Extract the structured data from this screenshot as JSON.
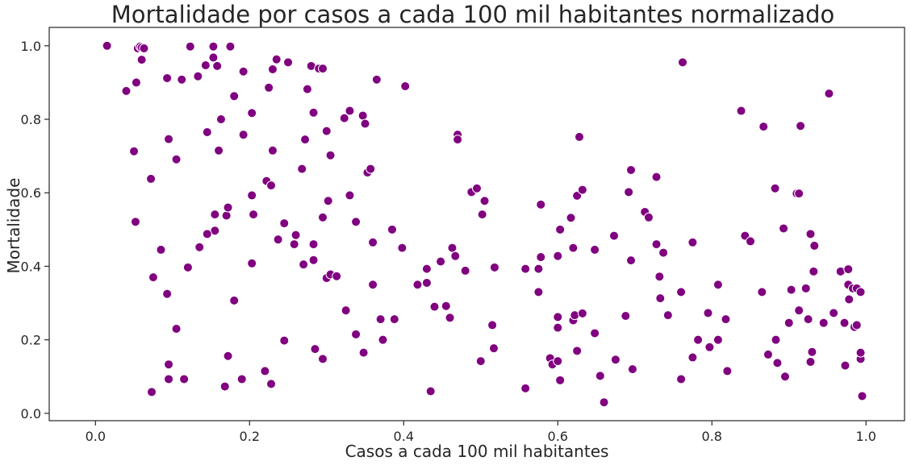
{
  "chart_data": {
    "type": "scatter",
    "title": "Mortalidade por casos a cada 100 mil habitantes normalizado",
    "xlabel": "Casos a cada 100 mil habitantes",
    "ylabel": "Mortalidade",
    "xlim": [
      -0.06,
      1.05
    ],
    "ylim": [
      -0.02,
      1.05
    ],
    "xticks": [
      0.0,
      0.2,
      0.4,
      0.6,
      0.8,
      1.0
    ],
    "xtick_labels": [
      "0.0",
      "0.2",
      "0.4",
      "0.6",
      "0.8",
      "1.0"
    ],
    "yticks": [
      0.0,
      0.2,
      0.4,
      0.6,
      0.8,
      1.0
    ],
    "ytick_labels": [
      "0.0",
      "0.2",
      "0.4",
      "0.6",
      "0.8",
      "1.0"
    ],
    "grid": false,
    "color": "#800080",
    "points": [
      [
        0.015,
        1.0
      ],
      [
        0.055,
        0.993
      ],
      [
        0.058,
        0.998
      ],
      [
        0.06,
        0.995
      ],
      [
        0.063,
        0.993
      ],
      [
        0.06,
        0.962
      ],
      [
        0.123,
        0.998
      ],
      [
        0.153,
        0.998
      ],
      [
        0.175,
        0.998
      ],
      [
        0.04,
        0.877
      ],
      [
        0.053,
        0.9
      ],
      [
        0.093,
        0.912
      ],
      [
        0.112,
        0.908
      ],
      [
        0.133,
        0.917
      ],
      [
        0.143,
        0.947
      ],
      [
        0.153,
        0.968
      ],
      [
        0.158,
        0.945
      ],
      [
        0.18,
        0.863
      ],
      [
        0.192,
        0.93
      ],
      [
        0.225,
        0.886
      ],
      [
        0.23,
        0.936
      ],
      [
        0.235,
        0.963
      ],
      [
        0.25,
        0.955
      ],
      [
        0.28,
        0.945
      ],
      [
        0.29,
        0.938
      ],
      [
        0.295,
        0.938
      ],
      [
        0.365,
        0.908
      ],
      [
        0.402,
        0.89
      ],
      [
        0.05,
        0.713
      ],
      [
        0.095,
        0.746
      ],
      [
        0.105,
        0.691
      ],
      [
        0.145,
        0.765
      ],
      [
        0.163,
        0.8
      ],
      [
        0.16,
        0.715
      ],
      [
        0.192,
        0.758
      ],
      [
        0.203,
        0.817
      ],
      [
        0.23,
        0.715
      ],
      [
        0.272,
        0.745
      ],
      [
        0.275,
        0.882
      ],
      [
        0.283,
        0.818
      ],
      [
        0.3,
        0.768
      ],
      [
        0.305,
        0.702
      ],
      [
        0.323,
        0.803
      ],
      [
        0.33,
        0.823
      ],
      [
        0.347,
        0.81
      ],
      [
        0.35,
        0.788
      ],
      [
        0.072,
        0.638
      ],
      [
        0.052,
        0.521
      ],
      [
        0.155,
        0.541
      ],
      [
        0.155,
        0.497
      ],
      [
        0.17,
        0.538
      ],
      [
        0.172,
        0.56
      ],
      [
        0.145,
        0.488
      ],
      [
        0.135,
        0.452
      ],
      [
        0.203,
        0.593
      ],
      [
        0.205,
        0.541
      ],
      [
        0.222,
        0.632
      ],
      [
        0.228,
        0.62
      ],
      [
        0.245,
        0.517
      ],
      [
        0.26,
        0.485
      ],
      [
        0.258,
        0.46
      ],
      [
        0.237,
        0.473
      ],
      [
        0.268,
        0.665
      ],
      [
        0.295,
        0.533
      ],
      [
        0.302,
        0.578
      ],
      [
        0.283,
        0.46
      ],
      [
        0.33,
        0.593
      ],
      [
        0.338,
        0.521
      ],
      [
        0.353,
        0.655
      ],
      [
        0.357,
        0.665
      ],
      [
        0.36,
        0.465
      ],
      [
        0.385,
        0.5
      ],
      [
        0.398,
        0.45
      ],
      [
        0.085,
        0.445
      ],
      [
        0.075,
        0.37
      ],
      [
        0.093,
        0.325
      ],
      [
        0.12,
        0.397
      ],
      [
        0.105,
        0.23
      ],
      [
        0.18,
        0.307
      ],
      [
        0.203,
        0.408
      ],
      [
        0.27,
        0.405
      ],
      [
        0.283,
        0.417
      ],
      [
        0.3,
        0.368
      ],
      [
        0.305,
        0.378
      ],
      [
        0.313,
        0.373
      ],
      [
        0.36,
        0.35
      ],
      [
        0.325,
        0.28
      ],
      [
        0.338,
        0.215
      ],
      [
        0.37,
        0.256
      ],
      [
        0.373,
        0.2
      ],
      [
        0.388,
        0.256
      ],
      [
        0.348,
        0.165
      ],
      [
        0.295,
        0.148
      ],
      [
        0.285,
        0.175
      ],
      [
        0.245,
        0.198
      ],
      [
        0.095,
        0.133
      ],
      [
        0.095,
        0.093
      ],
      [
        0.115,
        0.093
      ],
      [
        0.073,
        0.058
      ],
      [
        0.168,
        0.073
      ],
      [
        0.172,
        0.156
      ],
      [
        0.19,
        0.093
      ],
      [
        0.22,
        0.115
      ],
      [
        0.228,
        0.08
      ],
      [
        0.47,
        0.758
      ],
      [
        0.47,
        0.745
      ],
      [
        0.488,
        0.602
      ],
      [
        0.495,
        0.612
      ],
      [
        0.505,
        0.578
      ],
      [
        0.502,
        0.541
      ],
      [
        0.463,
        0.45
      ],
      [
        0.467,
        0.428
      ],
      [
        0.48,
        0.388
      ],
      [
        0.43,
        0.393
      ],
      [
        0.43,
        0.355
      ],
      [
        0.418,
        0.35
      ],
      [
        0.448,
        0.413
      ],
      [
        0.44,
        0.29
      ],
      [
        0.455,
        0.292
      ],
      [
        0.46,
        0.26
      ],
      [
        0.435,
        0.06
      ],
      [
        0.515,
        0.24
      ],
      [
        0.517,
        0.177
      ],
      [
        0.518,
        0.397
      ],
      [
        0.5,
        0.142
      ],
      [
        0.558,
        0.393
      ],
      [
        0.575,
        0.393
      ],
      [
        0.578,
        0.568
      ],
      [
        0.578,
        0.425
      ],
      [
        0.575,
        0.33
      ],
      [
        0.558,
        0.068
      ],
      [
        0.59,
        0.15
      ],
      [
        0.593,
        0.133
      ],
      [
        0.6,
        0.142
      ],
      [
        0.6,
        0.233
      ],
      [
        0.6,
        0.262
      ],
      [
        0.6,
        0.428
      ],
      [
        0.603,
        0.09
      ],
      [
        0.603,
        0.5
      ],
      [
        0.617,
        0.532
      ],
      [
        0.62,
        0.45
      ],
      [
        0.62,
        0.253
      ],
      [
        0.622,
        0.267
      ],
      [
        0.625,
        0.592
      ],
      [
        0.625,
        0.17
      ],
      [
        0.628,
        0.752
      ],
      [
        0.632,
        0.608
      ],
      [
        0.632,
        0.272
      ],
      [
        0.648,
        0.445
      ],
      [
        0.648,
        0.218
      ],
      [
        0.655,
        0.102
      ],
      [
        0.66,
        0.03
      ],
      [
        0.673,
        0.483
      ],
      [
        0.675,
        0.146
      ],
      [
        0.688,
        0.265
      ],
      [
        0.692,
        0.602
      ],
      [
        0.695,
        0.662
      ],
      [
        0.695,
        0.416
      ],
      [
        0.697,
        0.12
      ],
      [
        0.713,
        0.548
      ],
      [
        0.718,
        0.533
      ],
      [
        0.728,
        0.643
      ],
      [
        0.728,
        0.46
      ],
      [
        0.732,
        0.372
      ],
      [
        0.733,
        0.313
      ],
      [
        0.737,
        0.437
      ],
      [
        0.743,
        0.267
      ],
      [
        0.762,
        0.955
      ],
      [
        0.76,
        0.33
      ],
      [
        0.76,
        0.093
      ],
      [
        0.775,
        0.465
      ],
      [
        0.775,
        0.152
      ],
      [
        0.782,
        0.2
      ],
      [
        0.795,
        0.273
      ],
      [
        0.797,
        0.18
      ],
      [
        0.808,
        0.2
      ],
      [
        0.808,
        0.35
      ],
      [
        0.818,
        0.256
      ],
      [
        0.82,
        0.115
      ],
      [
        0.838,
        0.823
      ],
      [
        0.843,
        0.483
      ],
      [
        0.85,
        0.468
      ],
      [
        0.865,
        0.33
      ],
      [
        0.867,
        0.78
      ],
      [
        0.873,
        0.16
      ],
      [
        0.882,
        0.612
      ],
      [
        0.883,
        0.2
      ],
      [
        0.885,
        0.137
      ],
      [
        0.893,
        0.503
      ],
      [
        0.895,
        0.1
      ],
      [
        0.9,
        0.246
      ],
      [
        0.903,
        0.336
      ],
      [
        0.91,
        0.598
      ],
      [
        0.913,
        0.598
      ],
      [
        0.915,
        0.782
      ],
      [
        0.913,
        0.28
      ],
      [
        0.922,
        0.34
      ],
      [
        0.925,
        0.256
      ],
      [
        0.928,
        0.488
      ],
      [
        0.93,
        0.167
      ],
      [
        0.928,
        0.14
      ],
      [
        0.932,
        0.386
      ],
      [
        0.933,
        0.456
      ],
      [
        0.945,
        0.246
      ],
      [
        0.952,
        0.87
      ],
      [
        0.958,
        0.273
      ],
      [
        0.967,
        0.386
      ],
      [
        0.972,
        0.246
      ],
      [
        0.973,
        0.13
      ],
      [
        0.977,
        0.392
      ],
      [
        0.977,
        0.35
      ],
      [
        0.978,
        0.31
      ],
      [
        0.983,
        0.34
      ],
      [
        0.985,
        0.235
      ],
      [
        0.988,
        0.34
      ],
      [
        0.988,
        0.24
      ],
      [
        0.993,
        0.33
      ],
      [
        0.993,
        0.148
      ],
      [
        0.993,
        0.165
      ],
      [
        0.995,
        0.047
      ]
    ]
  }
}
